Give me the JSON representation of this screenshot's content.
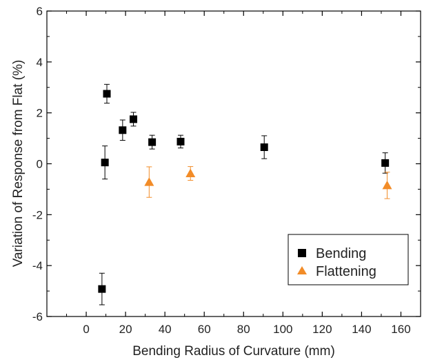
{
  "chart_data": {
    "type": "scatter",
    "title": "",
    "xlabel": "Bending Radius of Curvature (mm)",
    "ylabel": "Variation of Response from Flat (%)",
    "xlim": [
      -20,
      170
    ],
    "ylim": [
      -6,
      6
    ],
    "xticks": [
      0,
      20,
      40,
      60,
      80,
      100,
      120,
      140,
      160
    ],
    "yticks": [
      -6,
      -4,
      -2,
      0,
      2,
      4,
      6
    ],
    "grid": false,
    "legend_position": "bottom-right",
    "series": [
      {
        "name": "Bending",
        "marker": "square",
        "color": "#000000",
        "points": [
          {
            "x": 8,
            "y": -4.92,
            "err": 0.62
          },
          {
            "x": 9.5,
            "y": 0.05,
            "err": 0.65
          },
          {
            "x": 10.5,
            "y": 2.75,
            "err": 0.37
          },
          {
            "x": 18.5,
            "y": 1.32,
            "err": 0.4
          },
          {
            "x": 24,
            "y": 1.75,
            "err": 0.27
          },
          {
            "x": 33.5,
            "y": 0.85,
            "err": 0.27
          },
          {
            "x": 48,
            "y": 0.87,
            "err": 0.25
          },
          {
            "x": 90.5,
            "y": 0.65,
            "err": 0.45
          },
          {
            "x": 152,
            "y": 0.03,
            "err": 0.4
          }
        ]
      },
      {
        "name": "Flattening",
        "marker": "triangle",
        "color": "#f28c28",
        "points": [
          {
            "x": 32,
            "y": -0.72,
            "err": 0.6
          },
          {
            "x": 53,
            "y": -0.38,
            "err": 0.27
          },
          {
            "x": 153,
            "y": -0.85,
            "err": 0.52
          }
        ]
      }
    ]
  }
}
